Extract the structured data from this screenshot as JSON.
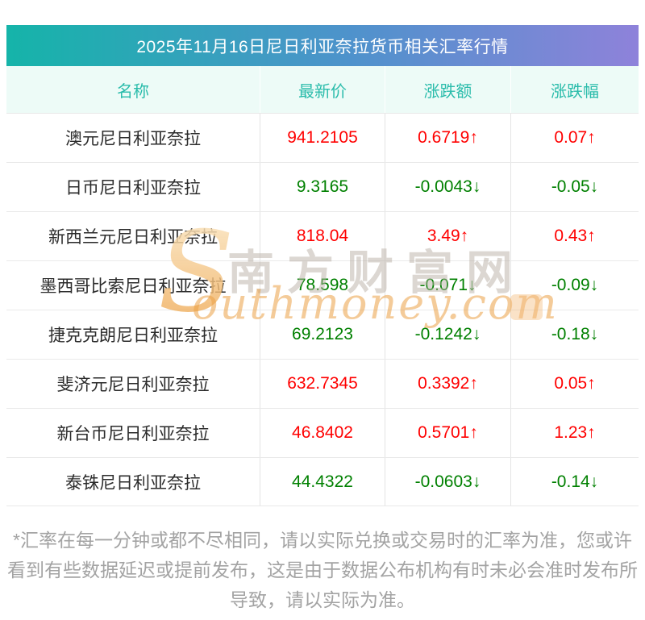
{
  "title": {
    "text": "2025年11月16日尼日利亚奈拉货币相关汇率行情",
    "gradient_from": "#15b4a9",
    "gradient_to": "#8e82da",
    "text_color": "#ffffff"
  },
  "table": {
    "columns": [
      "名称",
      "最新价",
      "涨跌额",
      "涨跌幅"
    ],
    "rows": [
      {
        "name": "澳元尼日利亚奈拉",
        "price": "941.2105",
        "change": "0.6719↑",
        "pct": "0.07↑",
        "trend": "up"
      },
      {
        "name": "日币尼日利亚奈拉",
        "price": "9.3165",
        "change": "-0.0043↓",
        "pct": "-0.05↓",
        "trend": "down"
      },
      {
        "name": "新西兰元尼日利亚奈拉",
        "price": "818.04",
        "change": "3.49↑",
        "pct": "0.43↑",
        "trend": "up"
      },
      {
        "name": "墨西哥比索尼日利亚奈拉",
        "price": "78.598",
        "change": "-0.071↓",
        "pct": "-0.09↓",
        "trend": "down"
      },
      {
        "name": "捷克克朗尼日利亚奈拉",
        "price": "69.2123",
        "change": "-0.1242↓",
        "pct": "-0.18↓",
        "trend": "down"
      },
      {
        "name": "斐济元尼日利亚奈拉",
        "price": "632.7345",
        "change": "0.3392↑",
        "pct": "0.05↑",
        "trend": "up"
      },
      {
        "name": "新台币尼日利亚奈拉",
        "price": "46.8402",
        "change": "0.5701↑",
        "pct": "1.23↑",
        "trend": "up"
      },
      {
        "name": "泰铢尼日利亚奈拉",
        "price": "44.4322",
        "change": "-0.0603↓",
        "pct": "-0.14↓",
        "trend": "down"
      }
    ]
  },
  "chart_data": {
    "type": "table",
    "title": "2025年11月16日尼日利亚奈拉货币相关汇率行情",
    "columns": [
      "名称",
      "最新价",
      "涨跌额",
      "涨跌幅"
    ],
    "rows": [
      [
        "澳元尼日利亚奈拉",
        941.2105,
        0.6719,
        "0.07",
        "up"
      ],
      [
        "日币尼日利亚奈拉",
        9.3165,
        -0.0043,
        "-0.05",
        "down"
      ],
      [
        "新西兰元尼日利亚奈拉",
        818.04,
        3.49,
        "0.43",
        "up"
      ],
      [
        "墨西哥比索尼日利亚奈拉",
        78.598,
        -0.071,
        "-0.09",
        "down"
      ],
      [
        "捷克克朗尼日利亚奈拉",
        69.2123,
        -0.1242,
        "-0.18",
        "down"
      ],
      [
        "斐济元尼日利亚奈拉",
        632.7345,
        0.3392,
        "0.05",
        "up"
      ],
      [
        "新台币尼日利亚奈拉",
        46.8402,
        0.5701,
        "1.23",
        "up"
      ],
      [
        "泰铢尼日利亚奈拉",
        44.4322,
        -0.0603,
        "-0.14",
        "down"
      ]
    ]
  },
  "watermark": {
    "logo_s": "S",
    "cn_text": "南方财富网",
    "en_text": "outhmoney.com"
  },
  "footnote": {
    "text": "*汇率在每一分钟或都不尽相同，请以实际兑换或交易时的汇率为准，您或许看到有些数据延迟或提前发布，这是由于数据公布机构有时未必会准时发布所导致，请以实际为准。"
  },
  "colors": {
    "up": "#ff0000",
    "down": "#008000",
    "header_text": "#2abcab",
    "header_bg": "#edfbf7",
    "footnote_text": "#a3a3a3",
    "row_border": "#e9e9e9"
  }
}
